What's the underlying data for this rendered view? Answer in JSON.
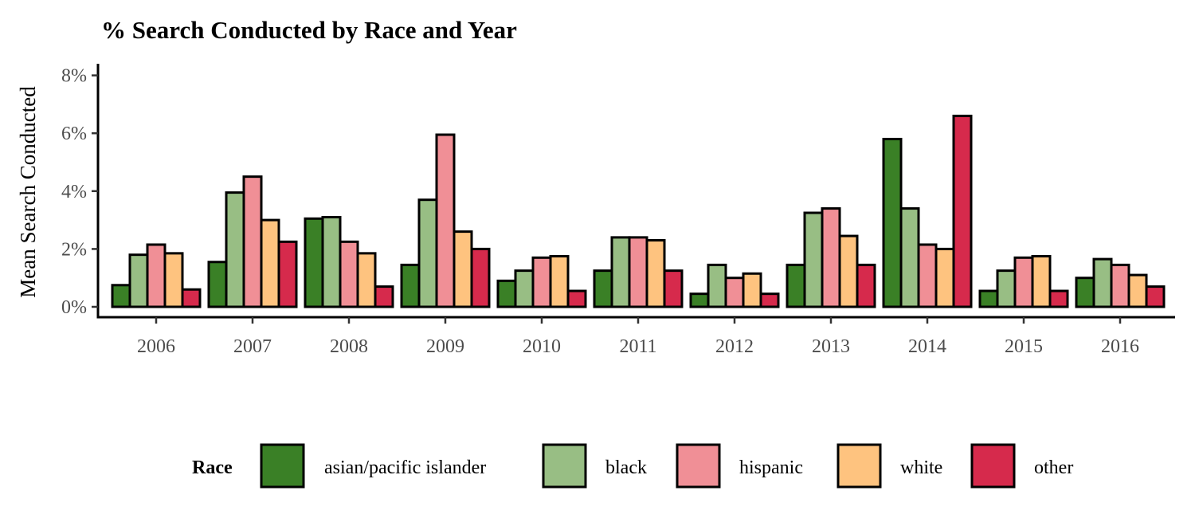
{
  "chart_data": {
    "type": "bar",
    "title": "% Search Conducted by Race and Year",
    "xlabel": "",
    "ylabel": "Mean Search Conducted",
    "ylim": [
      0,
      8.3
    ],
    "yticks": [
      0,
      2,
      4,
      6,
      8
    ],
    "ytick_labels": [
      "0%",
      "2%",
      "4%",
      "6%",
      "8%"
    ],
    "y_unit": "%",
    "grid": false,
    "legend_position": "bottom",
    "legend_title": "Race",
    "categories": [
      "2006",
      "2007",
      "2008",
      "2009",
      "2010",
      "2011",
      "2012",
      "2013",
      "2014",
      "2015",
      "2016"
    ],
    "series": [
      {
        "name": "asian/pacific islander",
        "color": "#3A8026",
        "values": [
          0.75,
          1.55,
          3.05,
          1.45,
          0.9,
          1.25,
          0.45,
          1.45,
          5.8,
          0.55,
          1.0
        ]
      },
      {
        "name": "black",
        "color": "#98BE84",
        "values": [
          1.8,
          3.95,
          3.1,
          3.7,
          1.25,
          2.4,
          1.45,
          3.25,
          3.4,
          1.25,
          1.65
        ]
      },
      {
        "name": "hispanic",
        "color": "#F08F96",
        "values": [
          2.15,
          4.5,
          2.25,
          5.95,
          1.7,
          2.4,
          1.0,
          3.4,
          2.15,
          1.7,
          1.45
        ]
      },
      {
        "name": "white",
        "color": "#FEC37F",
        "values": [
          1.85,
          3.0,
          1.85,
          2.6,
          1.75,
          2.3,
          1.15,
          2.45,
          2.0,
          1.75,
          1.1
        ]
      },
      {
        "name": "other",
        "color": "#D62A4C",
        "values": [
          0.6,
          2.25,
          0.7,
          2.0,
          0.55,
          1.25,
          0.45,
          1.45,
          6.6,
          0.55,
          0.7
        ]
      }
    ]
  }
}
